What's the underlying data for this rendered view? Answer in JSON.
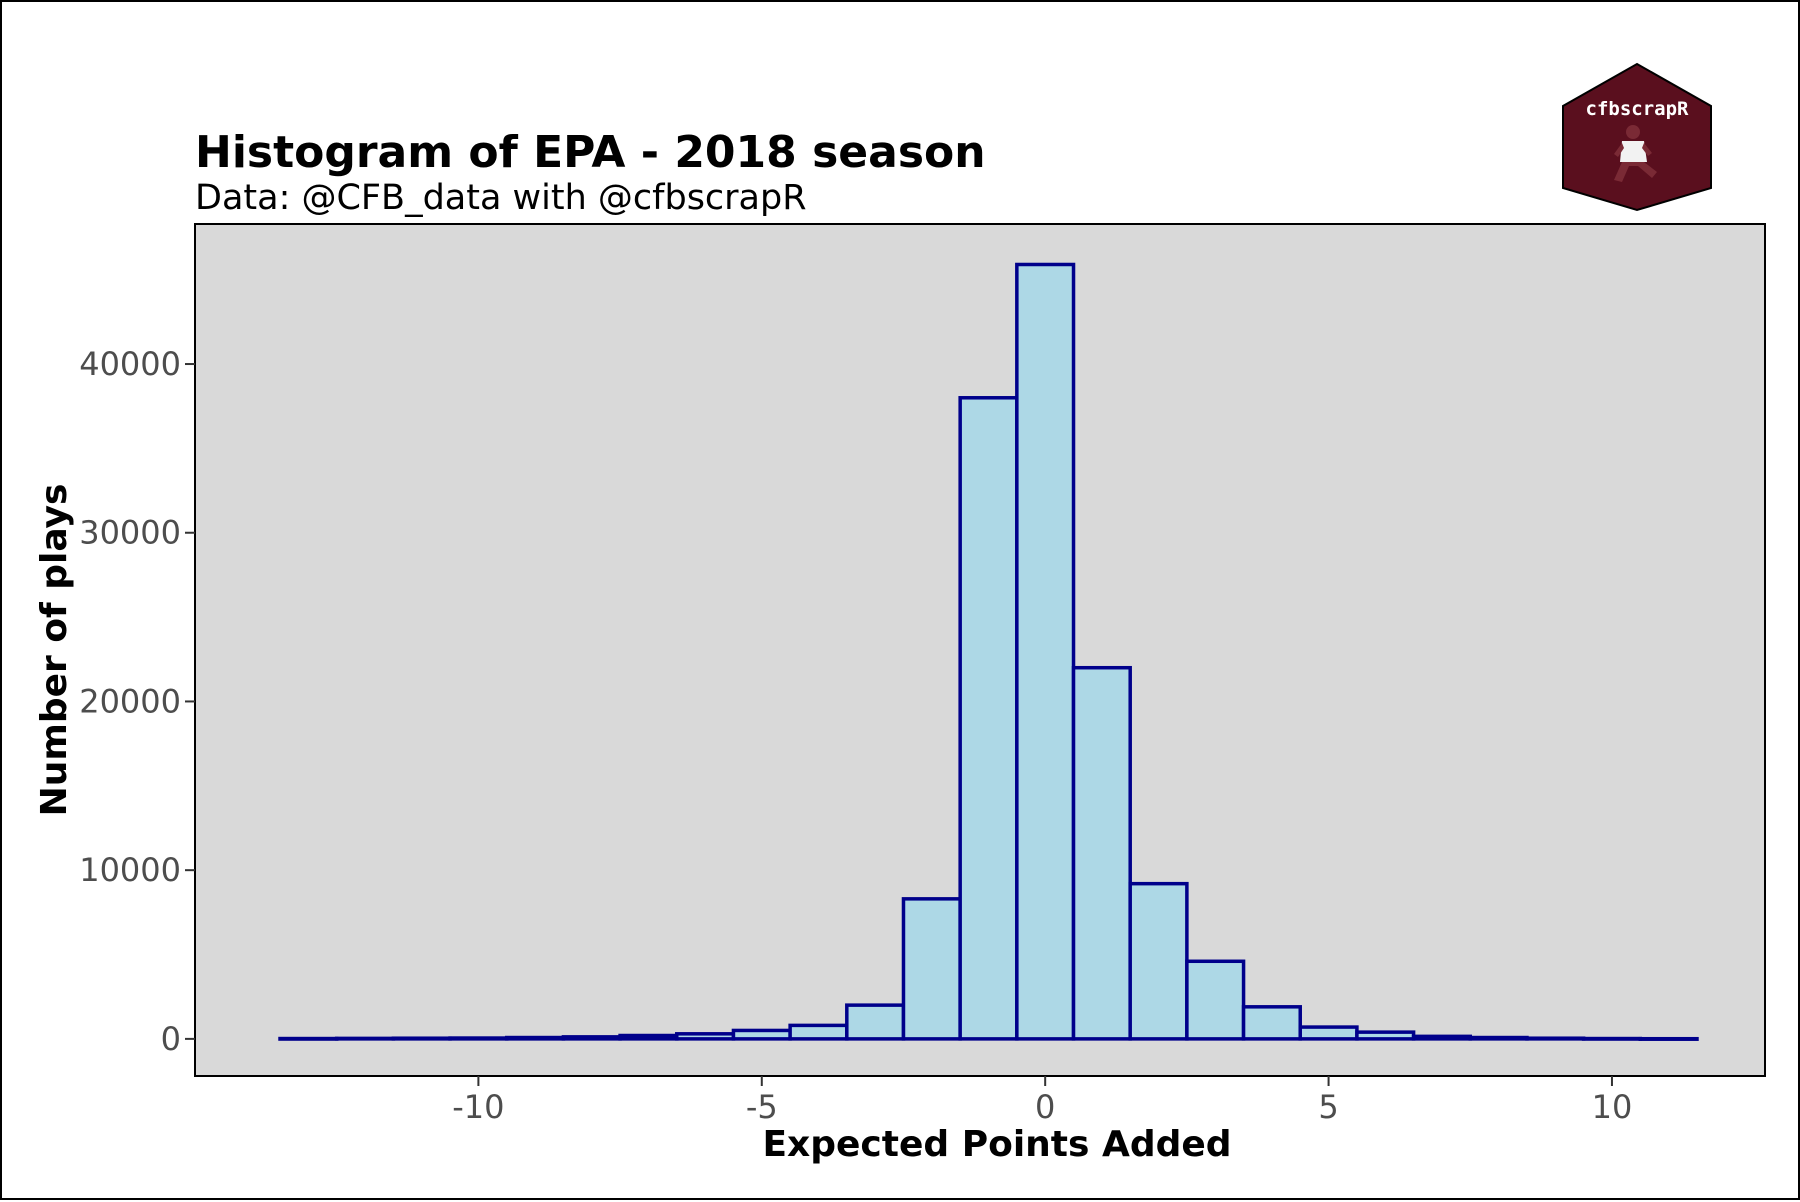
{
  "chart_data": {
    "type": "bar",
    "title": "Histogram of EPA - 2018 season",
    "subtitle": "Data: @CFB_data with @cfbscrapR",
    "xlabel": "Expected Points Added",
    "ylabel": "Number of plays",
    "bin_width": 1,
    "x": [
      -13,
      -12,
      -11,
      -10,
      -9,
      -8,
      -7,
      -6,
      -5,
      -4,
      -3,
      -2,
      -1,
      0,
      1,
      2,
      3,
      4,
      5,
      6,
      7,
      8,
      9,
      10,
      11
    ],
    "values": [
      20,
      30,
      40,
      50,
      80,
      120,
      200,
      300,
      500,
      800,
      2000,
      8300,
      38000,
      45900,
      22000,
      9200,
      4600,
      1900,
      700,
      400,
      150,
      80,
      40,
      20,
      10
    ],
    "xlim": [
      -15,
      12.7
    ],
    "ylim": [
      -2200,
      48300
    ],
    "x_ticks": [
      -10,
      -5,
      0,
      5,
      10
    ],
    "x_tick_labels": [
      "-10",
      "-5",
      "0",
      "5",
      "10"
    ],
    "y_ticks": [
      0,
      10000,
      20000,
      30000,
      40000
    ],
    "y_tick_labels": [
      "0",
      "10000",
      "20000",
      "30000",
      "40000"
    ],
    "grid": false,
    "legend": "none",
    "colors": {
      "bar_fill": "#add8e6",
      "bar_stroke": "#00008b",
      "panel_bg": "#d9d9d9",
      "tick_text": "#4d4d4d"
    }
  },
  "logo": {
    "text": "cfbscrapR",
    "fill": "#5a0f1e",
    "icon": "football-player-icon"
  }
}
